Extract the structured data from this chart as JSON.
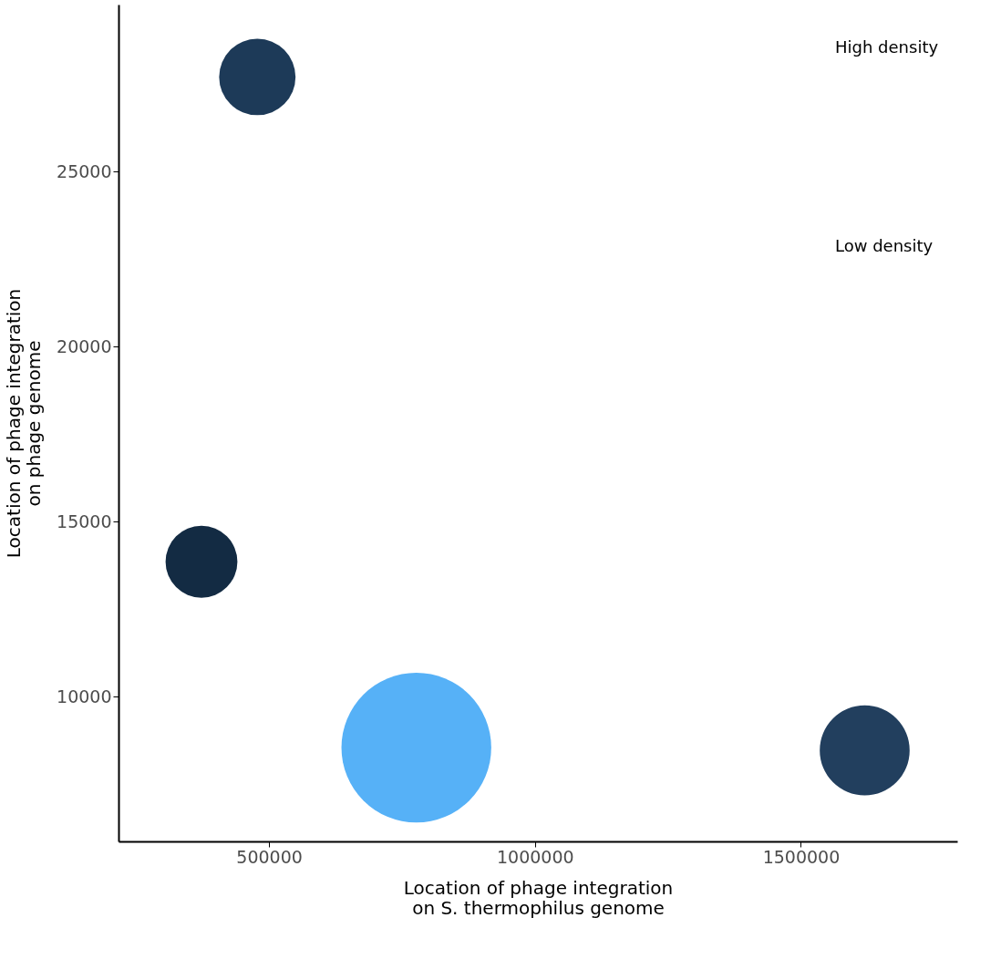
{
  "chart_data": {
    "type": "bubble",
    "xlabel": "Location of phage integration\non S. thermophilus genome",
    "ylabel": "Location of phage integration\non phage genome",
    "x": [
      478000,
      373000,
      777000,
      1620000
    ],
    "values": [
      27700,
      13850,
      8540,
      8460
    ],
    "sizes": [
      0.26,
      0.23,
      1,
      0.36
    ],
    "colors": [
      "#1d3a58",
      "#132b43",
      "#56b1f7",
      "#223f5e"
    ],
    "annotations": [
      "High density",
      "Low density"
    ],
    "xlim": [
      217000,
      1794000
    ],
    "xticks": [
      500000,
      1000000,
      1500000
    ],
    "ylim": [
      5860,
      29770
    ],
    "yticks": [
      10000,
      15000,
      20000,
      25000
    ],
    "grid": false
  }
}
